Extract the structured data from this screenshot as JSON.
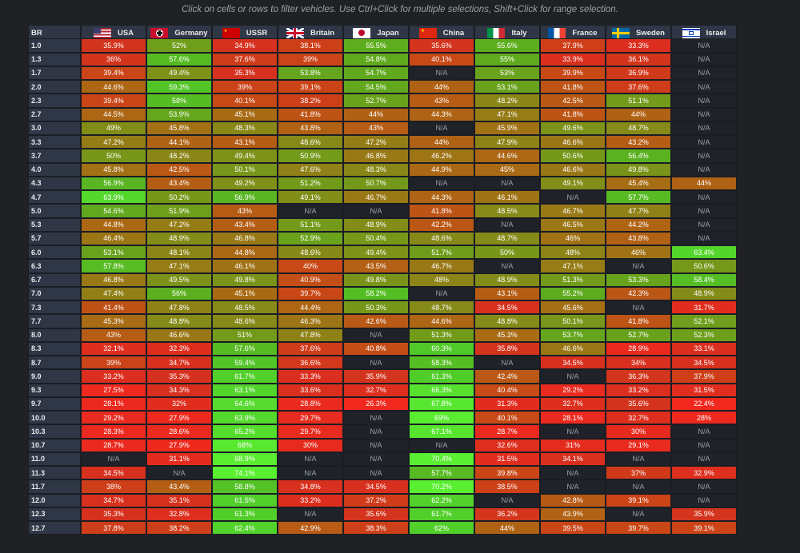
{
  "hint": "Click on cells or rows to filter vehicles. Use Ctrl+Click for multiple selections, Shift+Click for range selection.",
  "header": {
    "br_label": "BR",
    "nations": [
      {
        "name": "USA",
        "flag": "usa-flag-icon"
      },
      {
        "name": "Germany",
        "flag": "germany-flag-icon"
      },
      {
        "name": "USSR",
        "flag": "ussr-flag-icon"
      },
      {
        "name": "Britain",
        "flag": "britain-flag-icon"
      },
      {
        "name": "Japan",
        "flag": "japan-flag-icon"
      },
      {
        "name": "China",
        "flag": "china-flag-icon"
      },
      {
        "name": "Italy",
        "flag": "italy-flag-icon"
      },
      {
        "name": "France",
        "flag": "france-flag-icon"
      },
      {
        "name": "Sweden",
        "flag": "sweden-flag-icon"
      },
      {
        "name": "Israel",
        "flag": "israel-flag-icon"
      }
    ]
  },
  "rows": [
    {
      "br": "1.0",
      "vals": [
        "35.9%",
        "52%",
        "34.9%",
        "38.1%",
        "55.5%",
        "35.6%",
        "55.6%",
        "37.9%",
        "33.3%",
        "N/A"
      ]
    },
    {
      "br": "1.3",
      "vals": [
        "36%",
        "57.6%",
        "37.6%",
        "39%",
        "54.8%",
        "40.1%",
        "55%",
        "33.9%",
        "36.1%",
        "N/A"
      ]
    },
    {
      "br": "1.7",
      "vals": [
        "39.4%",
        "49.4%",
        "35.3%",
        "53.8%",
        "54.7%",
        "N/A",
        "53%",
        "39.9%",
        "36.9%",
        "N/A"
      ]
    },
    {
      "br": "2.0",
      "vals": [
        "44.6%",
        "59.3%",
        "39%",
        "39.1%",
        "54.5%",
        "44%",
        "53.1%",
        "41.8%",
        "37.6%",
        "N/A"
      ]
    },
    {
      "br": "2.3",
      "vals": [
        "39.4%",
        "58%",
        "40.1%",
        "38.2%",
        "52.7%",
        "43%",
        "48.2%",
        "42.5%",
        "51.1%",
        "N/A"
      ]
    },
    {
      "br": "2.7",
      "vals": [
        "44.5%",
        "53.9%",
        "45.1%",
        "41.8%",
        "44%",
        "44.3%",
        "47.1%",
        "41.8%",
        "44%",
        "N/A"
      ]
    },
    {
      "br": "3.0",
      "vals": [
        "49%",
        "45.8%",
        "48.3%",
        "43.8%",
        "43%",
        "N/A",
        "45.9%",
        "49.6%",
        "48.7%",
        "N/A"
      ]
    },
    {
      "br": "3.3",
      "vals": [
        "47.2%",
        "44.1%",
        "43.1%",
        "48.6%",
        "47.2%",
        "44%",
        "47.9%",
        "46.6%",
        "43.2%",
        "N/A"
      ]
    },
    {
      "br": "3.7",
      "vals": [
        "50%",
        "48.2%",
        "49.4%",
        "50.9%",
        "46.8%",
        "46.2%",
        "44.6%",
        "50.6%",
        "56.4%",
        "N/A"
      ]
    },
    {
      "br": "4.0",
      "vals": [
        "45.8%",
        "42.5%",
        "50.1%",
        "47.6%",
        "48.3%",
        "44.9%",
        "45%",
        "46.6%",
        "49.8%",
        "N/A"
      ]
    },
    {
      "br": "4.3",
      "vals": [
        "56.9%",
        "43.4%",
        "49.2%",
        "51.2%",
        "50.7%",
        "N/A",
        "N/A",
        "49.1%",
        "45.4%",
        "44%"
      ]
    },
    {
      "br": "4.7",
      "vals": [
        "63.9%",
        "50.2%",
        "56.9%",
        "49.1%",
        "46.7%",
        "44.3%",
        "46.1%",
        "N/A",
        "57.7%",
        "N/A"
      ]
    },
    {
      "br": "5.0",
      "vals": [
        "54.6%",
        "51.9%",
        "43%",
        "N/A",
        "N/A",
        "41.8%",
        "48.5%",
        "46.7%",
        "47.7%",
        "N/A"
      ]
    },
    {
      "br": "5.3",
      "vals": [
        "44.8%",
        "47.2%",
        "43.4%",
        "51.1%",
        "48.9%",
        "42.2%",
        "N/A",
        "46.5%",
        "44.2%",
        "N/A"
      ]
    },
    {
      "br": "5.7",
      "vals": [
        "46.4%",
        "48.9%",
        "46.8%",
        "52.9%",
        "50.4%",
        "48.6%",
        "48.7%",
        "46%",
        "43.8%",
        "N/A"
      ]
    },
    {
      "br": "6.0",
      "vals": [
        "53.1%",
        "48.1%",
        "44.8%",
        "48.6%",
        "49.4%",
        "51.7%",
        "50%",
        "48%",
        "46%",
        "63.4%"
      ]
    },
    {
      "br": "6.3",
      "vals": [
        "57.8%",
        "47.1%",
        "46.1%",
        "40%",
        "43.5%",
        "46.7%",
        "N/A",
        "47.1%",
        "N/A",
        "50.6%"
      ]
    },
    {
      "br": "6.7",
      "vals": [
        "46.8%",
        "49.5%",
        "49.8%",
        "40.9%",
        "49.8%",
        "48%",
        "48.9%",
        "51.3%",
        "53.3%",
        "58.4%"
      ]
    },
    {
      "br": "7.0",
      "vals": [
        "47.4%",
        "56%",
        "45.1%",
        "39.7%",
        "58.2%",
        "N/A",
        "43.1%",
        "55.2%",
        "42.3%",
        "48.9%"
      ]
    },
    {
      "br": "7.3",
      "vals": [
        "41.4%",
        "47.8%",
        "48.5%",
        "44.4%",
        "50.3%",
        "48.7%",
        "34.5%",
        "45.6%",
        "N/A",
        "31.7%"
      ]
    },
    {
      "br": "7.7",
      "vals": [
        "45.3%",
        "48.8%",
        "48.6%",
        "46.3%",
        "42.6%",
        "44.6%",
        "48.8%",
        "50.1%",
        "41.8%",
        "52.1%"
      ]
    },
    {
      "br": "8.0",
      "vals": [
        "43%",
        "46.6%",
        "51%",
        "47.8%",
        "N/A",
        "51.3%",
        "45.3%",
        "53.7%",
        "52.7%",
        "52.3%"
      ]
    },
    {
      "br": "8.3",
      "vals": [
        "32.1%",
        "32.3%",
        "57.6%",
        "37.6%",
        "40.8%",
        "60.3%",
        "35.8%",
        "46.6%",
        "28.9%",
        "33.1%"
      ]
    },
    {
      "br": "8.7",
      "vals": [
        "39%",
        "34.7%",
        "59.4%",
        "36.6%",
        "N/A",
        "58.3%",
        "N/A",
        "34.5%",
        "34%",
        "34.5%"
      ]
    },
    {
      "br": "9.0",
      "vals": [
        "33.2%",
        "35.3%",
        "61.7%",
        "33.3%",
        "35.9%",
        "61.3%",
        "42.4%",
        "N/A",
        "36.3%",
        "37.9%"
      ]
    },
    {
      "br": "9.3",
      "vals": [
        "27.5%",
        "34.3%",
        "63.1%",
        "33.6%",
        "32.7%",
        "66.3%",
        "40.4%",
        "29.2%",
        "33.2%",
        "31.5%"
      ]
    },
    {
      "br": "9.7",
      "vals": [
        "28.1%",
        "32%",
        "64.6%",
        "28.8%",
        "26.3%",
        "67.8%",
        "31.3%",
        "32.7%",
        "35.6%",
        "22.4%"
      ]
    },
    {
      "br": "10.0",
      "vals": [
        "29.2%",
        "27.9%",
        "63.9%",
        "29.7%",
        "N/A",
        "69%",
        "40.1%",
        "28.1%",
        "32.7%",
        "28%"
      ]
    },
    {
      "br": "10.3",
      "vals": [
        "28.3%",
        "28.6%",
        "65.2%",
        "29.7%",
        "N/A",
        "67.1%",
        "28.7%",
        "N/A",
        "30%",
        "N/A"
      ]
    },
    {
      "br": "10.7",
      "vals": [
        "28.7%",
        "27.9%",
        "68%",
        "30%",
        "N/A",
        "N/A",
        "32.6%",
        "31%",
        "29.1%",
        "N/A"
      ]
    },
    {
      "br": "11.0",
      "vals": [
        "N/A",
        "31.1%",
        "68.9%",
        "N/A",
        "N/A",
        "70.4%",
        "31.5%",
        "34.1%",
        "N/A",
        "N/A"
      ]
    },
    {
      "br": "11.3",
      "vals": [
        "34.5%",
        "N/A",
        "74.1%",
        "N/A",
        "N/A",
        "57.7%",
        "39.8%",
        "N/A",
        "37%",
        "32.9%"
      ]
    },
    {
      "br": "11.7",
      "vals": [
        "38%",
        "43.4%",
        "58.8%",
        "34.8%",
        "34.5%",
        "70.2%",
        "38.5%",
        "N/A",
        "N/A",
        "N/A"
      ]
    },
    {
      "br": "12.0",
      "vals": [
        "34.7%",
        "35.1%",
        "61.5%",
        "33.2%",
        "37.2%",
        "62.2%",
        "N/A",
        "42.8%",
        "39.1%",
        "N/A"
      ]
    },
    {
      "br": "12.3",
      "vals": [
        "35.3%",
        "32.8%",
        "61.3%",
        "N/A",
        "35.6%",
        "61.7%",
        "36.2%",
        "43.9%",
        "N/A",
        "35.9%"
      ]
    },
    {
      "br": "12.7",
      "vals": [
        "37.8%",
        "38.2%",
        "62.4%",
        "42.9%",
        "38.3%",
        "62%",
        "44%",
        "39.5%",
        "39.7%",
        "39.1%"
      ]
    }
  ]
}
